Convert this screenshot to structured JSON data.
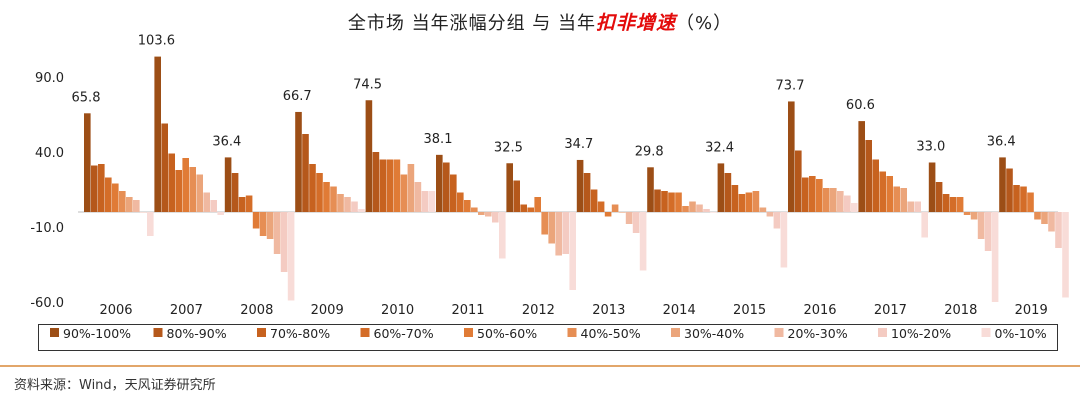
{
  "title": {
    "part1": "全市场  当年涨幅分组  与  当年",
    "highlight": "扣非增速",
    "part2": "（%）"
  },
  "source": "资料来源：Wind，天风证券研究所",
  "colors": [
    "#9c4e16",
    "#b5581b",
    "#c7621f",
    "#d46d28",
    "#e07b36",
    "#e68e54",
    "#eba57b",
    "#f0b9a1",
    "#f4cbc2",
    "#f8dcd8"
  ],
  "chart_data": {
    "type": "bar",
    "ylim": [
      -60,
      105
    ],
    "yticks": [
      "90.0",
      "40.0",
      "-10.0",
      "-60.0"
    ],
    "ytick_values": [
      90,
      40,
      -10,
      -60
    ],
    "categories": [
      "2006",
      "2007",
      "2008",
      "2009",
      "2010",
      "2011",
      "2012",
      "2013",
      "2014",
      "2015",
      "2016",
      "2017",
      "2018",
      "2019"
    ],
    "top_labels": [
      "65.8",
      "103.6",
      "36.4",
      "66.7",
      "74.5",
      "38.1",
      "32.5",
      "34.7",
      "29.8",
      "32.4",
      "73.7",
      "60.6",
      "33.0",
      "36.4"
    ],
    "series": [
      {
        "name": "90%-100%",
        "values": [
          65.8,
          103.6,
          36.4,
          66.7,
          74.5,
          38.1,
          32.5,
          34.7,
          29.8,
          32.4,
          73.7,
          60.6,
          33.0,
          36.4
        ]
      },
      {
        "name": "80%-90%",
        "values": [
          31,
          59,
          26,
          52,
          40,
          33,
          21,
          26,
          15,
          26,
          41,
          48,
          20,
          29
        ]
      },
      {
        "name": "70%-80%",
        "values": [
          32,
          39,
          10,
          32,
          35,
          25,
          5,
          15,
          14,
          18,
          23,
          35,
          12,
          18
        ]
      },
      {
        "name": "60%-70%",
        "values": [
          23,
          28,
          11,
          26,
          35,
          13,
          3,
          7,
          13,
          12,
          24,
          27,
          10,
          17
        ]
      },
      {
        "name": "50%-60%",
        "values": [
          19,
          36,
          -11,
          20,
          35,
          8,
          10,
          -3,
          13,
          13,
          22,
          24,
          10,
          13
        ]
      },
      {
        "name": "40%-50%",
        "values": [
          14,
          30,
          -16,
          17,
          25,
          3,
          -15,
          5,
          4,
          14,
          16,
          17,
          -2,
          -5
        ]
      },
      {
        "name": "30%-40%",
        "values": [
          10,
          25,
          -18,
          12,
          32,
          -2,
          -21,
          0,
          7,
          3,
          16,
          16,
          -5,
          -8
        ]
      },
      {
        "name": "20%-30%",
        "values": [
          8,
          13,
          -28,
          10,
          20,
          -3,
          -29,
          -8,
          5,
          -3,
          14,
          7,
          -18,
          -13
        ]
      },
      {
        "name": "10%-20%",
        "values": [
          0,
          8,
          -40,
          7,
          14,
          -7,
          -28,
          -14,
          2,
          -11,
          11,
          7,
          -26,
          -24
        ]
      },
      {
        "name": "0%-10%",
        "values": [
          -16,
          -2,
          -59,
          2,
          14,
          -31,
          -52,
          -39,
          0,
          -37,
          6,
          -17,
          -60,
          -57
        ]
      }
    ]
  }
}
